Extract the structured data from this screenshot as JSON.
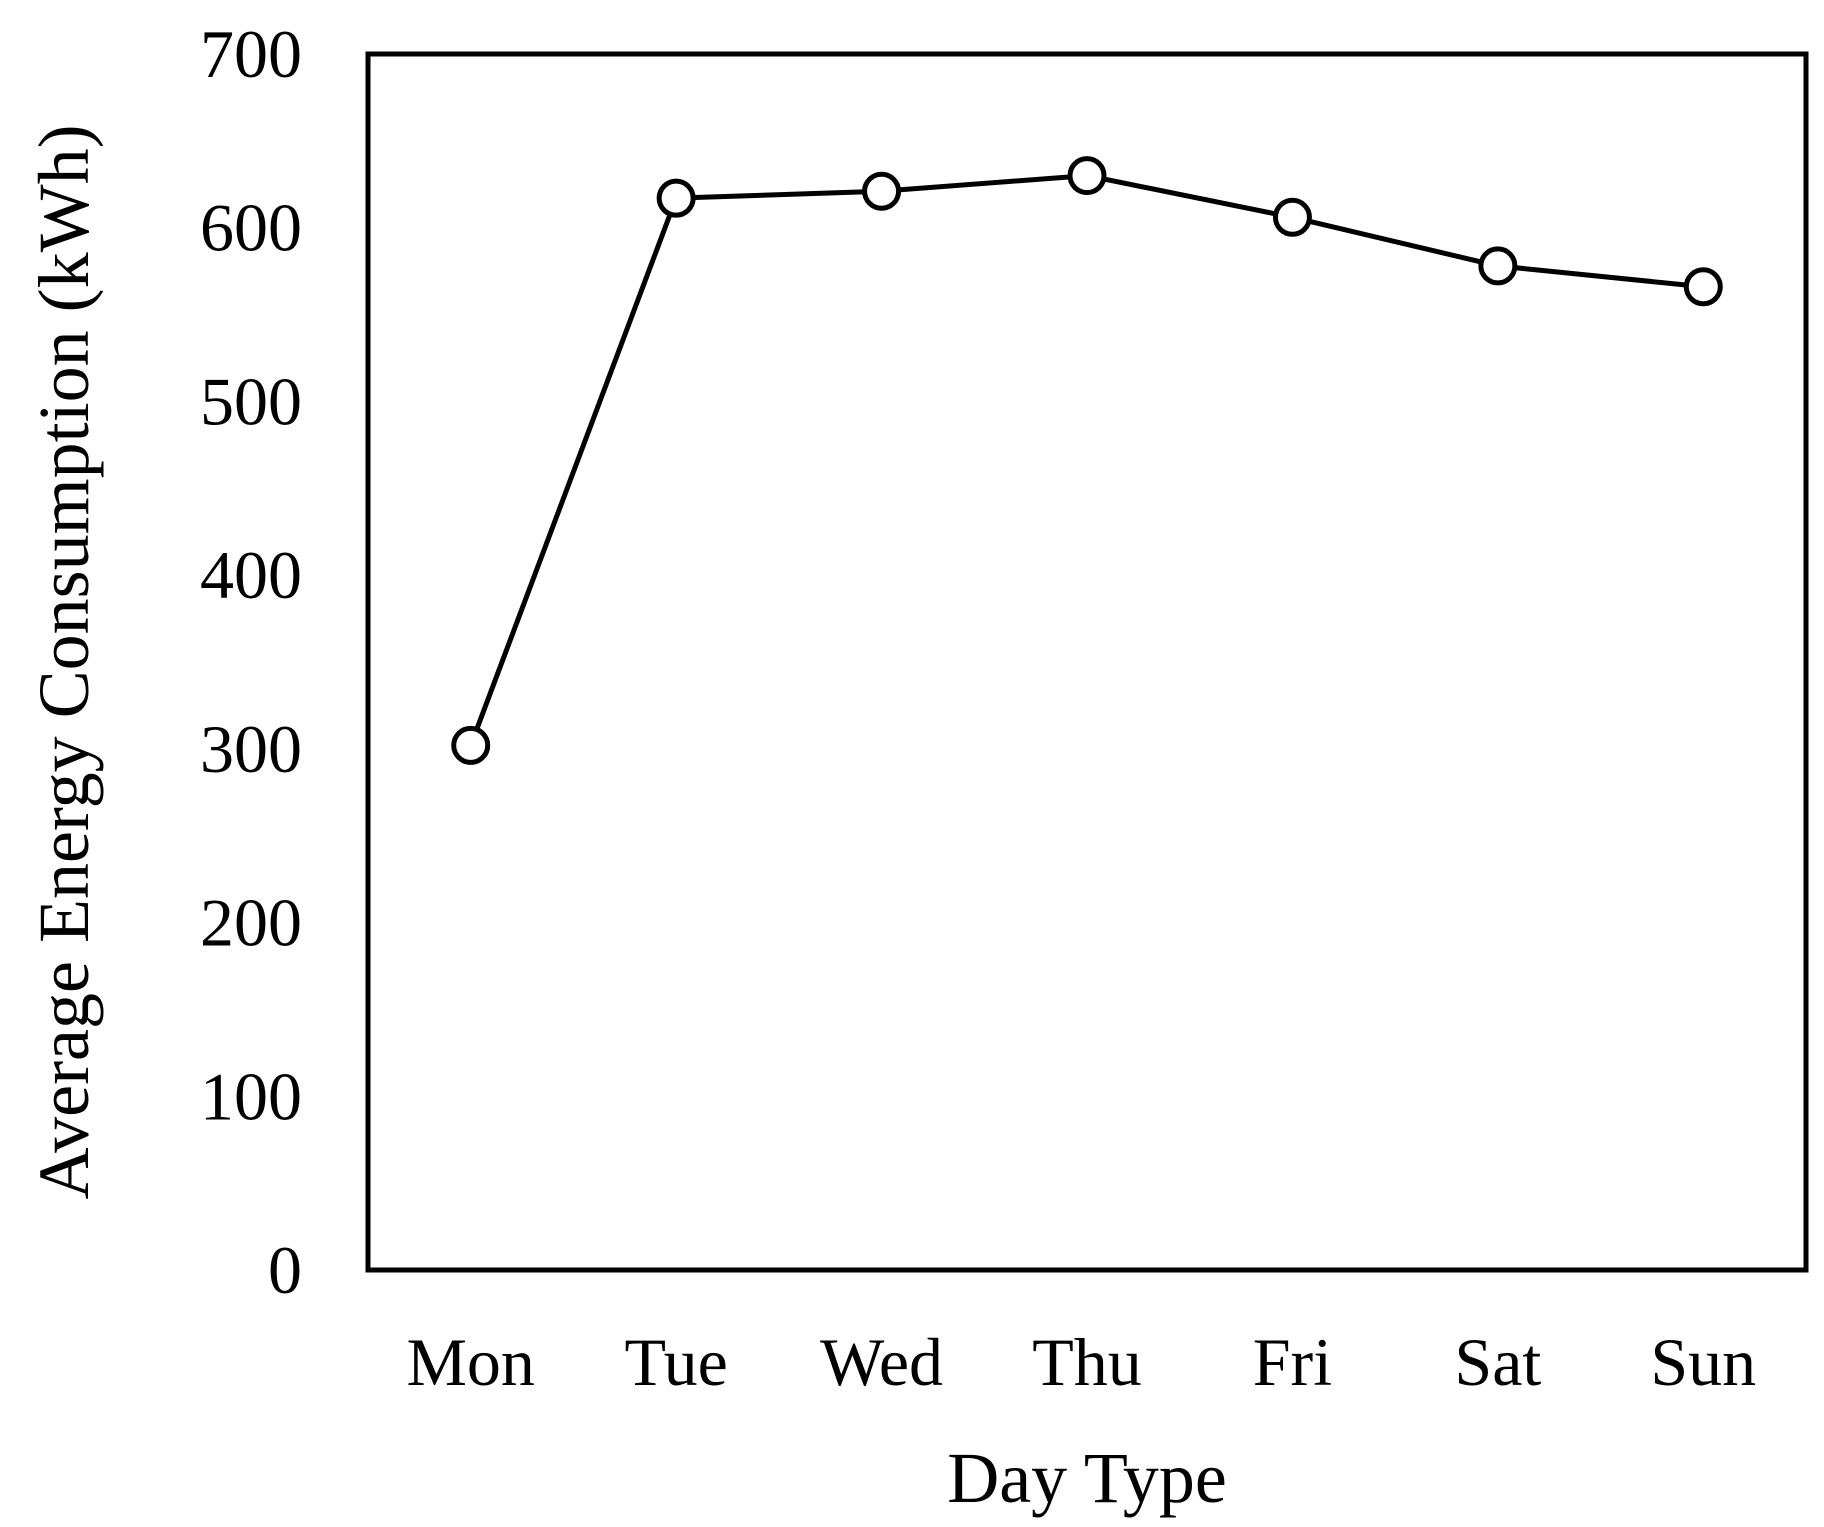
{
  "chart_data": {
    "type": "line",
    "title": "",
    "xlabel": "Day Type",
    "ylabel": "Average Energy Consumption (kWh)",
    "categories": [
      "Mon",
      "Tue",
      "Wed",
      "Thu",
      "Fri",
      "Sat",
      "Sun"
    ],
    "series": [
      {
        "values": [
          302,
          617,
          621,
          630,
          606,
          578,
          566
        ],
        "color": "#000000",
        "marker": "open-circle"
      }
    ],
    "ylim": [
      0,
      700
    ],
    "yticks": [
      0,
      100,
      200,
      300,
      400,
      500,
      600,
      700
    ],
    "grid": false,
    "legend": "none"
  }
}
